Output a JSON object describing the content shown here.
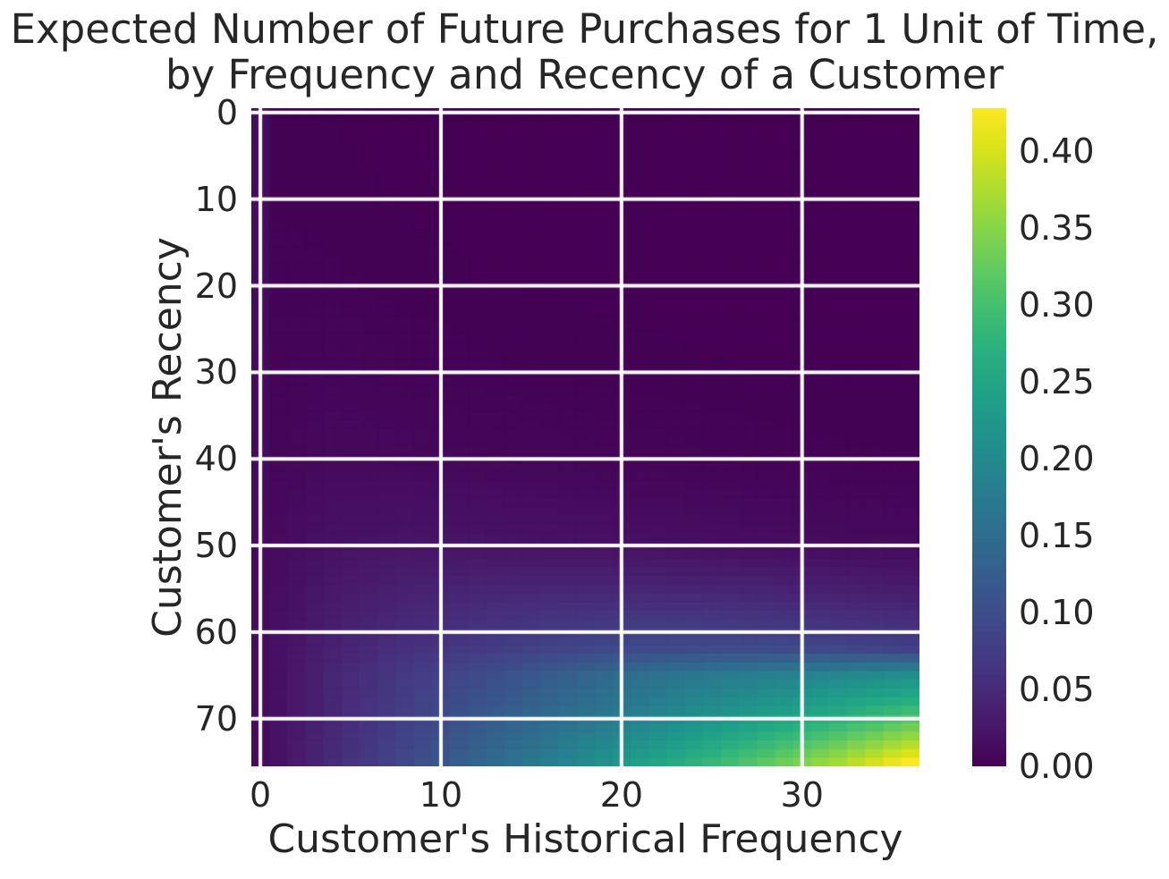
{
  "chart_data": {
    "type": "heatmap",
    "title": "Expected Number of Future Purchases for 1 Unit of Time, by Frequency and Recency of a Customer",
    "title_lines": [
      "Expected Number of Future Purchases for 1 Unit of Time,",
      "by Frequency and Recency of a Customer"
    ],
    "xlabel": "Customer's Historical Frequency",
    "ylabel": "Customer's Recency",
    "x_ticks": [
      0,
      10,
      20,
      30
    ],
    "y_ticks": [
      0,
      10,
      20,
      30,
      40,
      50,
      60,
      70
    ],
    "x_extent": [
      -0.5,
      36.5
    ],
    "y_extent": [
      -0.5,
      75.5
    ],
    "y_axis_inverted": true,
    "n_frequency_cells": 37,
    "n_recency_cells": 76,
    "colormap": "viridis",
    "vmin": 0.0,
    "vmax": 0.428,
    "grid": {
      "show": true,
      "color": "#ffffff"
    },
    "legend_position": "none",
    "colorbar": {
      "tick_values": [
        0.0,
        0.05,
        0.1,
        0.15,
        0.2,
        0.25,
        0.3,
        0.35,
        0.4
      ],
      "tick_labels": [
        "0.00",
        "0.05",
        "0.10",
        "0.15",
        "0.20",
        "0.25",
        "0.30",
        "0.35",
        "0.40"
      ]
    },
    "samples": {
      "comment": "Expected purchases sampled on a coarse (frequency, recency) grid, estimated from the colormap; full 37x76 field is bilinearly interpolated from these.",
      "frequency": [
        0,
        1,
        4,
        8,
        12,
        16,
        20,
        24,
        28,
        32,
        36
      ],
      "recency": [
        0,
        10,
        20,
        30,
        40,
        50,
        55,
        60,
        62,
        65,
        70,
        75
      ],
      "values": [
        [
          0.012,
          0.001,
          0.0005,
          0.0002,
          0.0001,
          0.0001,
          0.0,
          0.0,
          0.0,
          0.0,
          0.0
        ],
        [
          0.012,
          0.0015,
          0.001,
          0.0004,
          0.0002,
          0.0001,
          0.0001,
          0.0,
          0.0,
          0.0,
          0.0
        ],
        [
          0.012,
          0.0025,
          0.0022,
          0.0011,
          0.0006,
          0.0004,
          0.0002,
          0.0002,
          0.0001,
          0.0001,
          0.0001
        ],
        [
          0.012,
          0.004,
          0.0055,
          0.0032,
          0.0022,
          0.0015,
          0.001,
          0.0007,
          0.0005,
          0.0004,
          0.0003
        ],
        [
          0.012,
          0.0064,
          0.01,
          0.0082,
          0.007,
          0.0057,
          0.0045,
          0.0035,
          0.0027,
          0.0021,
          0.0017
        ],
        [
          0.012,
          0.012,
          0.019,
          0.023,
          0.022,
          0.02,
          0.018,
          0.016,
          0.014,
          0.012,
          0.011
        ],
        [
          0.012,
          0.014,
          0.027,
          0.037,
          0.042,
          0.044,
          0.044,
          0.042,
          0.039,
          0.035,
          0.031
        ],
        [
          0.012,
          0.017,
          0.035,
          0.052,
          0.063,
          0.072,
          0.078,
          0.079,
          0.075,
          0.068,
          0.062
        ],
        [
          0.012,
          0.0175,
          0.038,
          0.058,
          0.072,
          0.085,
          0.095,
          0.1,
          0.1,
          0.092,
          0.082
        ],
        [
          0.012,
          0.018,
          0.044,
          0.071,
          0.095,
          0.122,
          0.148,
          0.168,
          0.182,
          0.196,
          0.208
        ],
        [
          0.012,
          0.019,
          0.045,
          0.079,
          0.113,
          0.147,
          0.178,
          0.21,
          0.24,
          0.272,
          0.31
        ],
        [
          0.012,
          0.02,
          0.05,
          0.092,
          0.136,
          0.181,
          0.226,
          0.272,
          0.318,
          0.369,
          0.428
        ]
      ]
    }
  },
  "colors": {
    "background": "#ffffff",
    "text": "#262626",
    "grid_line": "#ffffff",
    "colormap_min": "#440154",
    "colormap_max": "#fde725"
  }
}
